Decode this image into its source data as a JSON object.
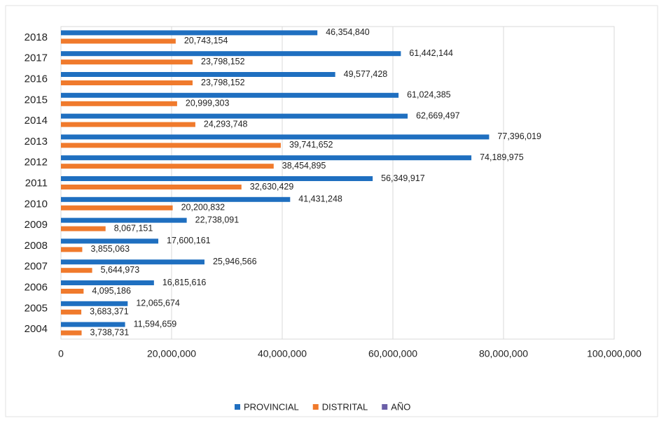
{
  "chart_data": {
    "type": "hbar",
    "categories": [
      "2018",
      "2017",
      "2016",
      "2015",
      "2014",
      "2013",
      "2012",
      "2011",
      "2010",
      "2009",
      "2008",
      "2007",
      "2006",
      "2005",
      "2004"
    ],
    "series": [
      {
        "name": "PROVINCIAL",
        "color": "#1f6fc0",
        "values": [
          46354840,
          61442144,
          49577428,
          61024385,
          62669497,
          77396019,
          74189975,
          56349917,
          41431248,
          22738091,
          17600161,
          25946566,
          16815616,
          12065674,
          11594659
        ],
        "value_labels": [
          "46,354,840",
          "61,442,144",
          "49,577,428",
          "61,024,385",
          "62,669,497",
          "77,396,019",
          "74,189,975",
          "56,349,917",
          "41,431,248",
          "22,738,091",
          "17,600,161",
          "25,946,566",
          "16,815,616",
          "12,065,674",
          "11,594,659"
        ]
      },
      {
        "name": "DISTRITAL",
        "color": "#f07a2c",
        "values": [
          20743154,
          23798152,
          23798152,
          20999303,
          24293748,
          39741652,
          38454895,
          32630429,
          20200832,
          8067151,
          3855063,
          5644973,
          4095186,
          3683371,
          3738731
        ],
        "value_labels": [
          "20,743,154",
          "23,798,152",
          "23,798,152",
          "20,999,303",
          "24,293,748",
          "39,741,652",
          "38,454,895",
          "32,630,429",
          "20,200,832",
          "8,067,151",
          "3,855,063",
          "5,644,973",
          "4,095,186",
          "3,683,371",
          "3,738,731"
        ]
      },
      {
        "name": "AÑO",
        "color": "#6b5fa8",
        "values": [
          null,
          null,
          null,
          null,
          null,
          null,
          null,
          null,
          null,
          null,
          null,
          null,
          null,
          null,
          null
        ]
      }
    ],
    "xlim": [
      0,
      100000000
    ],
    "xticks": [
      0,
      {
        "value": 20000000,
        "label": "20,000,000"
      },
      {
        "value": 40000000,
        "label": "40,000,000"
      },
      {
        "value": 60000000,
        "label": "60,000,000"
      },
      {
        "value": 80000000,
        "label": "80,000,000"
      },
      {
        "value": 100000000,
        "label": "100,000,000"
      }
    ],
    "grid": true
  }
}
